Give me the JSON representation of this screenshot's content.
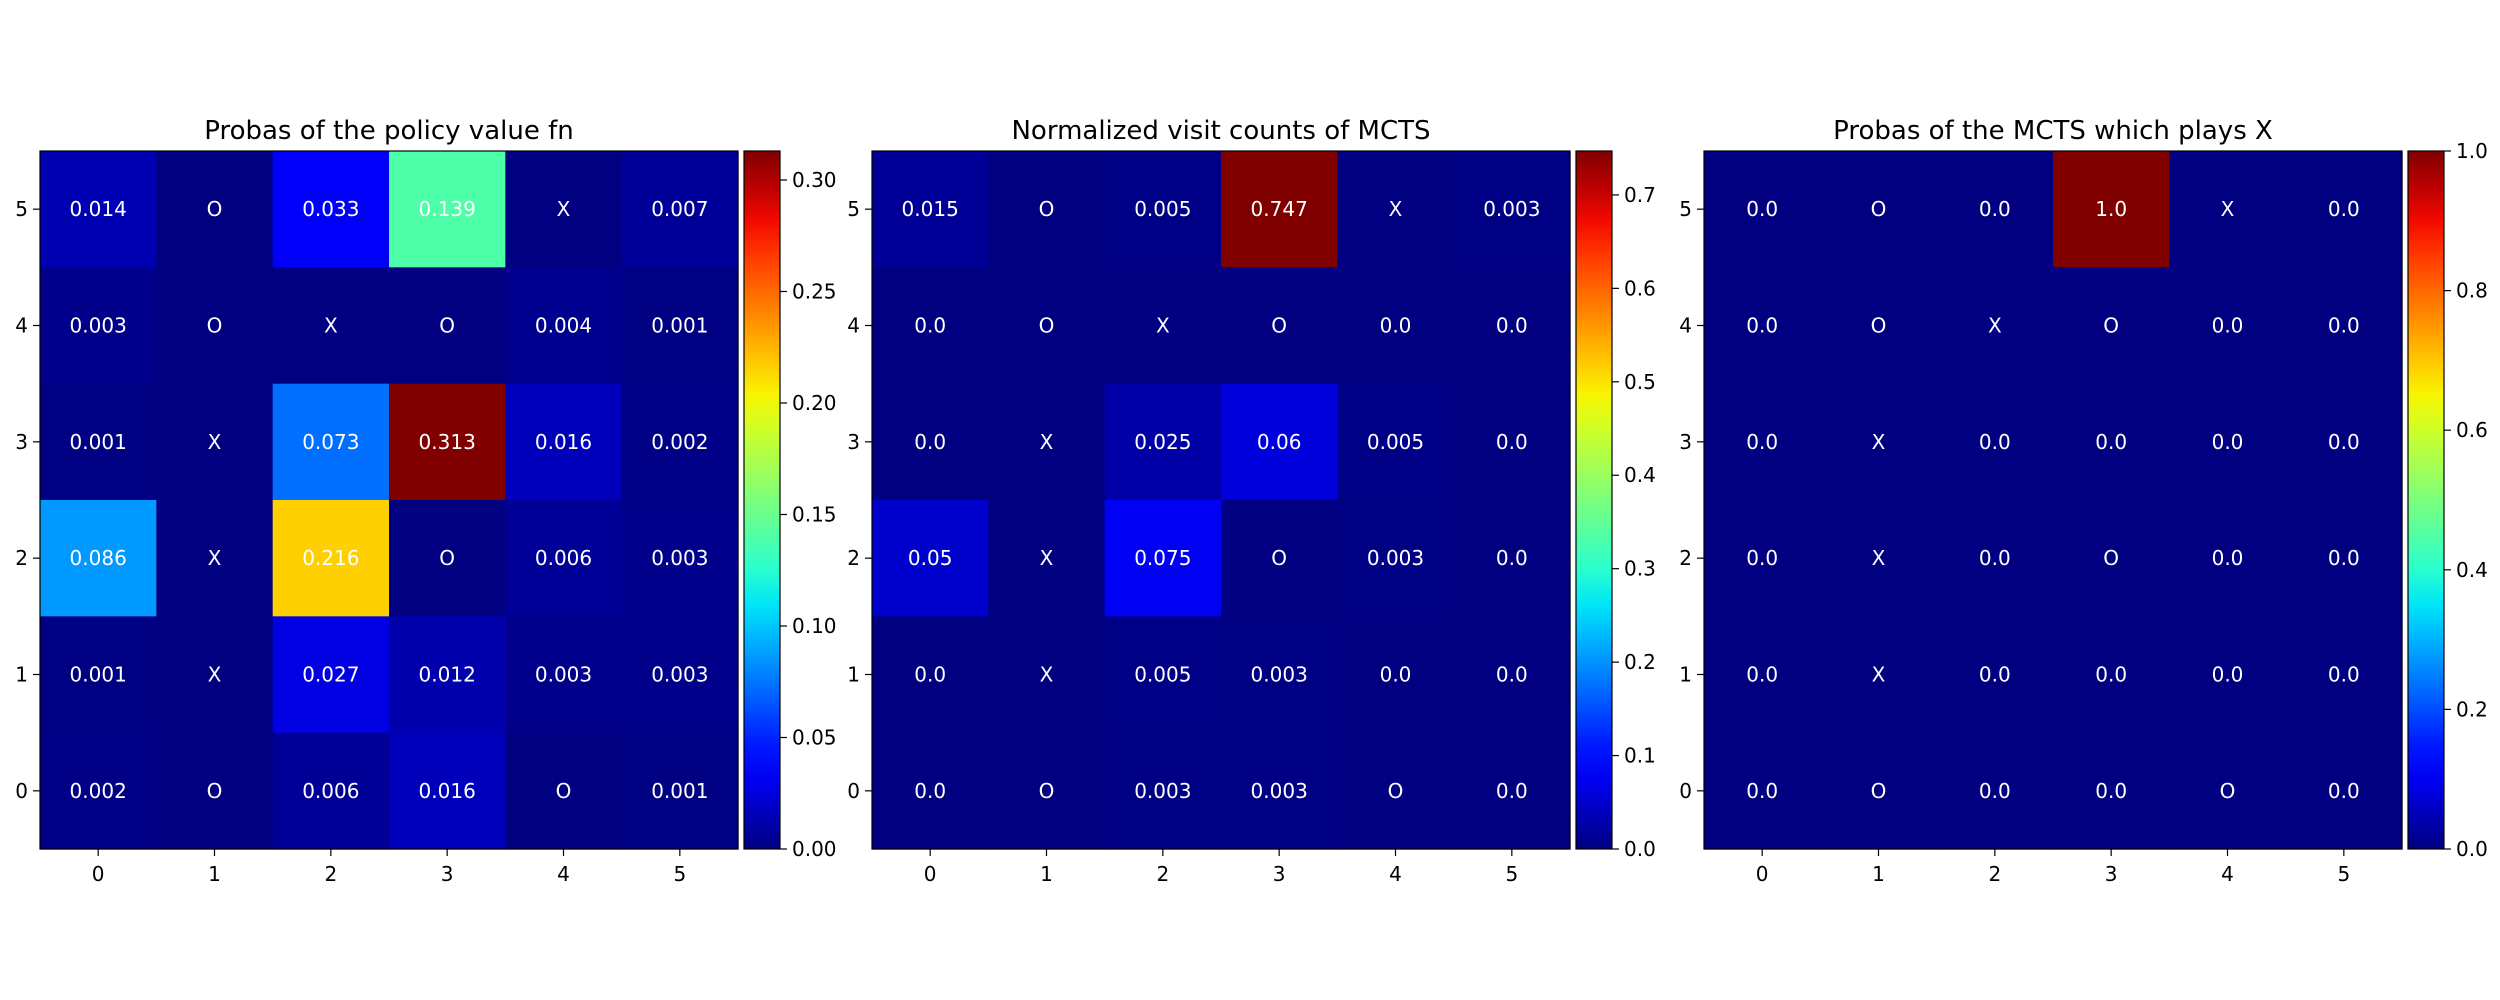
{
  "chart_data": [
    {
      "type": "heatmap",
      "title": "Probas of the policy value fn",
      "x_ticks": [
        "0",
        "1",
        "2",
        "3",
        "4",
        "5"
      ],
      "y_ticks": [
        "0",
        "1",
        "2",
        "3",
        "4",
        "5"
      ],
      "colormap": "jet",
      "vmin": 0.0,
      "vmax": 0.313,
      "colorbar_ticks": [
        "0.00",
        "0.05",
        "0.10",
        "0.15",
        "0.20",
        "0.25",
        "0.30"
      ],
      "rows_top_to_bottom": [
        5,
        4,
        3,
        2,
        1,
        0
      ],
      "cells": [
        [
          "0.014",
          "O",
          "0.033",
          "0.139",
          "X",
          "0.007"
        ],
        [
          "0.003",
          "O",
          "X",
          "O",
          "0.004",
          "0.001"
        ],
        [
          "0.001",
          "X",
          "0.073",
          "0.313",
          "0.016",
          "0.002"
        ],
        [
          "0.086",
          "X",
          "0.216",
          "O",
          "0.006",
          "0.003"
        ],
        [
          "0.001",
          "X",
          "0.027",
          "0.012",
          "0.003",
          "0.003"
        ],
        [
          "0.002",
          "O",
          "0.006",
          "0.016",
          "O",
          "0.001"
        ]
      ]
    },
    {
      "type": "heatmap",
      "title": "Normalized visit counts of MCTS",
      "x_ticks": [
        "0",
        "1",
        "2",
        "3",
        "4",
        "5"
      ],
      "y_ticks": [
        "0",
        "1",
        "2",
        "3",
        "4",
        "5"
      ],
      "colormap": "jet",
      "vmin": 0.0,
      "vmax": 0.747,
      "colorbar_ticks": [
        "0.0",
        "0.1",
        "0.2",
        "0.3",
        "0.4",
        "0.5",
        "0.6",
        "0.7"
      ],
      "rows_top_to_bottom": [
        5,
        4,
        3,
        2,
        1,
        0
      ],
      "cells": [
        [
          "0.015",
          "O",
          "0.005",
          "0.747",
          "X",
          "0.003"
        ],
        [
          "0.0",
          "O",
          "X",
          "O",
          "0.0",
          "0.0"
        ],
        [
          "0.0",
          "X",
          "0.025",
          "0.06",
          "0.005",
          "0.0"
        ],
        [
          "0.05",
          "X",
          "0.075",
          "O",
          "0.003",
          "0.0"
        ],
        [
          "0.0",
          "X",
          "0.005",
          "0.003",
          "0.0",
          "0.0"
        ],
        [
          "0.0",
          "O",
          "0.003",
          "0.003",
          "O",
          "0.0"
        ]
      ]
    },
    {
      "type": "heatmap",
      "title": "Probas of the MCTS which plays X",
      "x_ticks": [
        "0",
        "1",
        "2",
        "3",
        "4",
        "5"
      ],
      "y_ticks": [
        "0",
        "1",
        "2",
        "3",
        "4",
        "5"
      ],
      "colormap": "jet",
      "vmin": 0.0,
      "vmax": 1.0,
      "colorbar_ticks": [
        "0.0",
        "0.2",
        "0.4",
        "0.6",
        "0.8",
        "1.0"
      ],
      "rows_top_to_bottom": [
        5,
        4,
        3,
        2,
        1,
        0
      ],
      "cells": [
        [
          "0.0",
          "O",
          "0.0",
          "1.0",
          "X",
          "0.0"
        ],
        [
          "0.0",
          "O",
          "X",
          "O",
          "0.0",
          "0.0"
        ],
        [
          "0.0",
          "X",
          "0.0",
          "0.0",
          "0.0",
          "0.0"
        ],
        [
          "0.0",
          "X",
          "0.0",
          "O",
          "0.0",
          "0.0"
        ],
        [
          "0.0",
          "X",
          "0.0",
          "0.0",
          "0.0",
          "0.0"
        ],
        [
          "0.0",
          "O",
          "0.0",
          "0.0",
          "O",
          "0.0"
        ]
      ]
    }
  ]
}
